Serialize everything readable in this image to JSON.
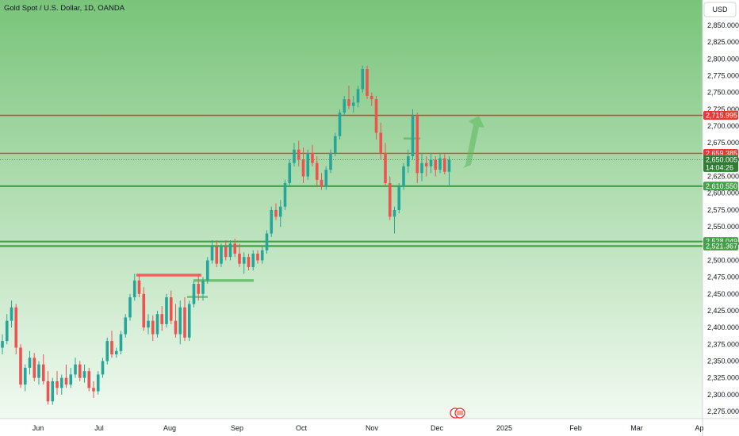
{
  "header": {
    "title": "Gold Spot / U.S. Dollar, 1D, OANDA",
    "currency_button": "USD"
  },
  "colors": {
    "up": "#26a69a",
    "down": "#ef5350",
    "background_top": "#7ec77e",
    "background_bottom": "#f2fbf2",
    "resistance": "#e53935",
    "support": "#43a047",
    "current_price": "#2e7d32"
  },
  "chart_data": {
    "type": "candlestick",
    "symbol": "Gold Spot / U.S. Dollar",
    "timeframe": "1D",
    "source": "OANDA",
    "currency": "USD",
    "x_labels": [
      "Jun",
      "Jul",
      "Aug",
      "Sep",
      "Oct",
      "Nov",
      "Dec",
      "2025",
      "Feb",
      "Mar",
      "Ap"
    ],
    "y_ticks": [
      "2,275.000",
      "2,300.000",
      "2,325.000",
      "2,350.000",
      "2,375.000",
      "2,400.000",
      "2,425.000",
      "2,450.000",
      "2,475.000",
      "2,500.000",
      "2,525.000",
      "2,550.000",
      "2,575.000",
      "2,600.000",
      "2,625.000",
      "2,650.000",
      "2,675.000",
      "2,700.000",
      "2,725.000",
      "2,750.000",
      "2,775.000",
      "2,800.000",
      "2,825.000",
      "2,850.000"
    ],
    "ylim": [
      2265,
      2878
    ],
    "horizontal_levels": [
      {
        "label": "2,715.995",
        "value": 2715.995,
        "kind": "resistance"
      },
      {
        "label": "2,659.385",
        "value": 2659.385,
        "kind": "resistance"
      },
      {
        "label": "2,610.550",
        "value": 2610.55,
        "kind": "support"
      },
      {
        "label": "2,528.049",
        "value": 2528.049,
        "kind": "support"
      },
      {
        "label": "2,521.367",
        "value": 2521.367,
        "kind": "support"
      }
    ],
    "current_price": {
      "label": "2,650.005",
      "value": 2650.005,
      "countdown": "14:04:26"
    },
    "candles": [
      {
        "o": 2370,
        "h": 2390,
        "l": 2360,
        "c": 2380
      },
      {
        "o": 2380,
        "h": 2420,
        "l": 2375,
        "c": 2410
      },
      {
        "o": 2410,
        "h": 2440,
        "l": 2400,
        "c": 2430
      },
      {
        "o": 2430,
        "h": 2435,
        "l": 2360,
        "c": 2370
      },
      {
        "o": 2370,
        "h": 2375,
        "l": 2310,
        "c": 2315
      },
      {
        "o": 2315,
        "h": 2345,
        "l": 2305,
        "c": 2340
      },
      {
        "o": 2340,
        "h": 2365,
        "l": 2330,
        "c": 2355
      },
      {
        "o": 2355,
        "h": 2362,
        "l": 2320,
        "c": 2325
      },
      {
        "o": 2325,
        "h": 2350,
        "l": 2315,
        "c": 2345
      },
      {
        "o": 2345,
        "h": 2360,
        "l": 2315,
        "c": 2320
      },
      {
        "o": 2320,
        "h": 2335,
        "l": 2285,
        "c": 2290
      },
      {
        "o": 2290,
        "h": 2325,
        "l": 2285,
        "c": 2320
      },
      {
        "o": 2320,
        "h": 2335,
        "l": 2300,
        "c": 2310
      },
      {
        "o": 2310,
        "h": 2330,
        "l": 2300,
        "c": 2325
      },
      {
        "o": 2325,
        "h": 2345,
        "l": 2310,
        "c": 2315
      },
      {
        "o": 2315,
        "h": 2340,
        "l": 2310,
        "c": 2330
      },
      {
        "o": 2330,
        "h": 2355,
        "l": 2325,
        "c": 2345
      },
      {
        "o": 2345,
        "h": 2350,
        "l": 2320,
        "c": 2325
      },
      {
        "o": 2325,
        "h": 2345,
        "l": 2318,
        "c": 2335
      },
      {
        "o": 2335,
        "h": 2340,
        "l": 2305,
        "c": 2310
      },
      {
        "o": 2310,
        "h": 2320,
        "l": 2295,
        "c": 2305
      },
      {
        "o": 2305,
        "h": 2335,
        "l": 2300,
        "c": 2330
      },
      {
        "o": 2330,
        "h": 2355,
        "l": 2325,
        "c": 2350
      },
      {
        "o": 2350,
        "h": 2385,
        "l": 2345,
        "c": 2380
      },
      {
        "o": 2380,
        "h": 2395,
        "l": 2355,
        "c": 2360
      },
      {
        "o": 2360,
        "h": 2370,
        "l": 2355,
        "c": 2365
      },
      {
        "o": 2365,
        "h": 2395,
        "l": 2360,
        "c": 2390
      },
      {
        "o": 2390,
        "h": 2420,
        "l": 2385,
        "c": 2415
      },
      {
        "o": 2415,
        "h": 2450,
        "l": 2410,
        "c": 2445
      },
      {
        "o": 2445,
        "h": 2480,
        "l": 2440,
        "c": 2470
      },
      {
        "o": 2470,
        "h": 2480,
        "l": 2445,
        "c": 2450
      },
      {
        "o": 2450,
        "h": 2460,
        "l": 2395,
        "c": 2400
      },
      {
        "o": 2400,
        "h": 2420,
        "l": 2390,
        "c": 2410
      },
      {
        "o": 2410,
        "h": 2418,
        "l": 2380,
        "c": 2390
      },
      {
        "o": 2390,
        "h": 2425,
        "l": 2385,
        "c": 2420
      },
      {
        "o": 2420,
        "h": 2432,
        "l": 2395,
        "c": 2405
      },
      {
        "o": 2405,
        "h": 2450,
        "l": 2400,
        "c": 2445
      },
      {
        "o": 2445,
        "h": 2455,
        "l": 2405,
        "c": 2410
      },
      {
        "o": 2410,
        "h": 2435,
        "l": 2385,
        "c": 2390
      },
      {
        "o": 2390,
        "h": 2440,
        "l": 2375,
        "c": 2430
      },
      {
        "o": 2430,
        "h": 2445,
        "l": 2380,
        "c": 2385
      },
      {
        "o": 2385,
        "h": 2440,
        "l": 2380,
        "c": 2435
      },
      {
        "o": 2435,
        "h": 2470,
        "l": 2430,
        "c": 2465
      },
      {
        "o": 2465,
        "h": 2480,
        "l": 2440,
        "c": 2450
      },
      {
        "o": 2450,
        "h": 2475,
        "l": 2440,
        "c": 2470
      },
      {
        "o": 2470,
        "h": 2505,
        "l": 2465,
        "c": 2500
      },
      {
        "o": 2500,
        "h": 2530,
        "l": 2495,
        "c": 2520
      },
      {
        "o": 2520,
        "h": 2530,
        "l": 2490,
        "c": 2495
      },
      {
        "o": 2495,
        "h": 2525,
        "l": 2490,
        "c": 2520
      },
      {
        "o": 2520,
        "h": 2530,
        "l": 2500,
        "c": 2505
      },
      {
        "o": 2505,
        "h": 2530,
        "l": 2500,
        "c": 2525
      },
      {
        "o": 2525,
        "h": 2532,
        "l": 2505,
        "c": 2510
      },
      {
        "o": 2510,
        "h": 2525,
        "l": 2490,
        "c": 2495
      },
      {
        "o": 2495,
        "h": 2512,
        "l": 2480,
        "c": 2505
      },
      {
        "o": 2505,
        "h": 2510,
        "l": 2485,
        "c": 2490
      },
      {
        "o": 2490,
        "h": 2515,
        "l": 2485,
        "c": 2510
      },
      {
        "o": 2510,
        "h": 2515,
        "l": 2495,
        "c": 2500
      },
      {
        "o": 2500,
        "h": 2520,
        "l": 2495,
        "c": 2515
      },
      {
        "o": 2515,
        "h": 2545,
        "l": 2510,
        "c": 2540
      },
      {
        "o": 2540,
        "h": 2580,
        "l": 2535,
        "c": 2575
      },
      {
        "o": 2575,
        "h": 2585,
        "l": 2560,
        "c": 2565
      },
      {
        "o": 2565,
        "h": 2590,
        "l": 2550,
        "c": 2580
      },
      {
        "o": 2580,
        "h": 2620,
        "l": 2575,
        "c": 2615
      },
      {
        "o": 2615,
        "h": 2650,
        "l": 2610,
        "c": 2645
      },
      {
        "o": 2645,
        "h": 2675,
        "l": 2640,
        "c": 2665
      },
      {
        "o": 2665,
        "h": 2678,
        "l": 2640,
        "c": 2650
      },
      {
        "o": 2650,
        "h": 2668,
        "l": 2615,
        "c": 2625
      },
      {
        "o": 2625,
        "h": 2665,
        "l": 2620,
        "c": 2660
      },
      {
        "o": 2660,
        "h": 2672,
        "l": 2640,
        "c": 2645
      },
      {
        "o": 2645,
        "h": 2655,
        "l": 2610,
        "c": 2620
      },
      {
        "o": 2620,
        "h": 2630,
        "l": 2605,
        "c": 2610
      },
      {
        "o": 2610,
        "h": 2640,
        "l": 2605,
        "c": 2635
      },
      {
        "o": 2635,
        "h": 2665,
        "l": 2630,
        "c": 2660
      },
      {
        "o": 2660,
        "h": 2690,
        "l": 2655,
        "c": 2685
      },
      {
        "o": 2685,
        "h": 2725,
        "l": 2680,
        "c": 2720
      },
      {
        "o": 2720,
        "h": 2745,
        "l": 2715,
        "c": 2740
      },
      {
        "o": 2740,
        "h": 2760,
        "l": 2725,
        "c": 2730
      },
      {
        "o": 2730,
        "h": 2745,
        "l": 2720,
        "c": 2735
      },
      {
        "o": 2735,
        "h": 2760,
        "l": 2728,
        "c": 2755
      },
      {
        "o": 2755,
        "h": 2790,
        "l": 2750,
        "c": 2785
      },
      {
        "o": 2785,
        "h": 2790,
        "l": 2740,
        "c": 2745
      },
      {
        "o": 2745,
        "h": 2750,
        "l": 2730,
        "c": 2740
      },
      {
        "o": 2740,
        "h": 2745,
        "l": 2680,
        "c": 2690
      },
      {
        "o": 2690,
        "h": 2705,
        "l": 2650,
        "c": 2660
      },
      {
        "o": 2660,
        "h": 2675,
        "l": 2610,
        "c": 2615
      },
      {
        "o": 2615,
        "h": 2625,
        "l": 2560,
        "c": 2565
      },
      {
        "o": 2565,
        "h": 2580,
        "l": 2540,
        "c": 2575
      },
      {
        "o": 2575,
        "h": 2615,
        "l": 2570,
        "c": 2610
      },
      {
        "o": 2610,
        "h": 2645,
        "l": 2605,
        "c": 2640
      },
      {
        "o": 2640,
        "h": 2665,
        "l": 2630,
        "c": 2655
      },
      {
        "o": 2655,
        "h": 2725,
        "l": 2650,
        "c": 2715
      },
      {
        "o": 2715,
        "h": 2720,
        "l": 2615,
        "c": 2630
      },
      {
        "o": 2630,
        "h": 2660,
        "l": 2618,
        "c": 2645
      },
      {
        "o": 2645,
        "h": 2655,
        "l": 2625,
        "c": 2640
      },
      {
        "o": 2640,
        "h": 2660,
        "l": 2630,
        "c": 2650
      },
      {
        "o": 2650,
        "h": 2655,
        "l": 2625,
        "c": 2635
      },
      {
        "o": 2635,
        "h": 2660,
        "l": 2630,
        "c": 2652
      },
      {
        "o": 2652,
        "h": 2658,
        "l": 2628,
        "c": 2632
      },
      {
        "o": 2632,
        "h": 2655,
        "l": 2612,
        "c": 2650
      }
    ]
  }
}
